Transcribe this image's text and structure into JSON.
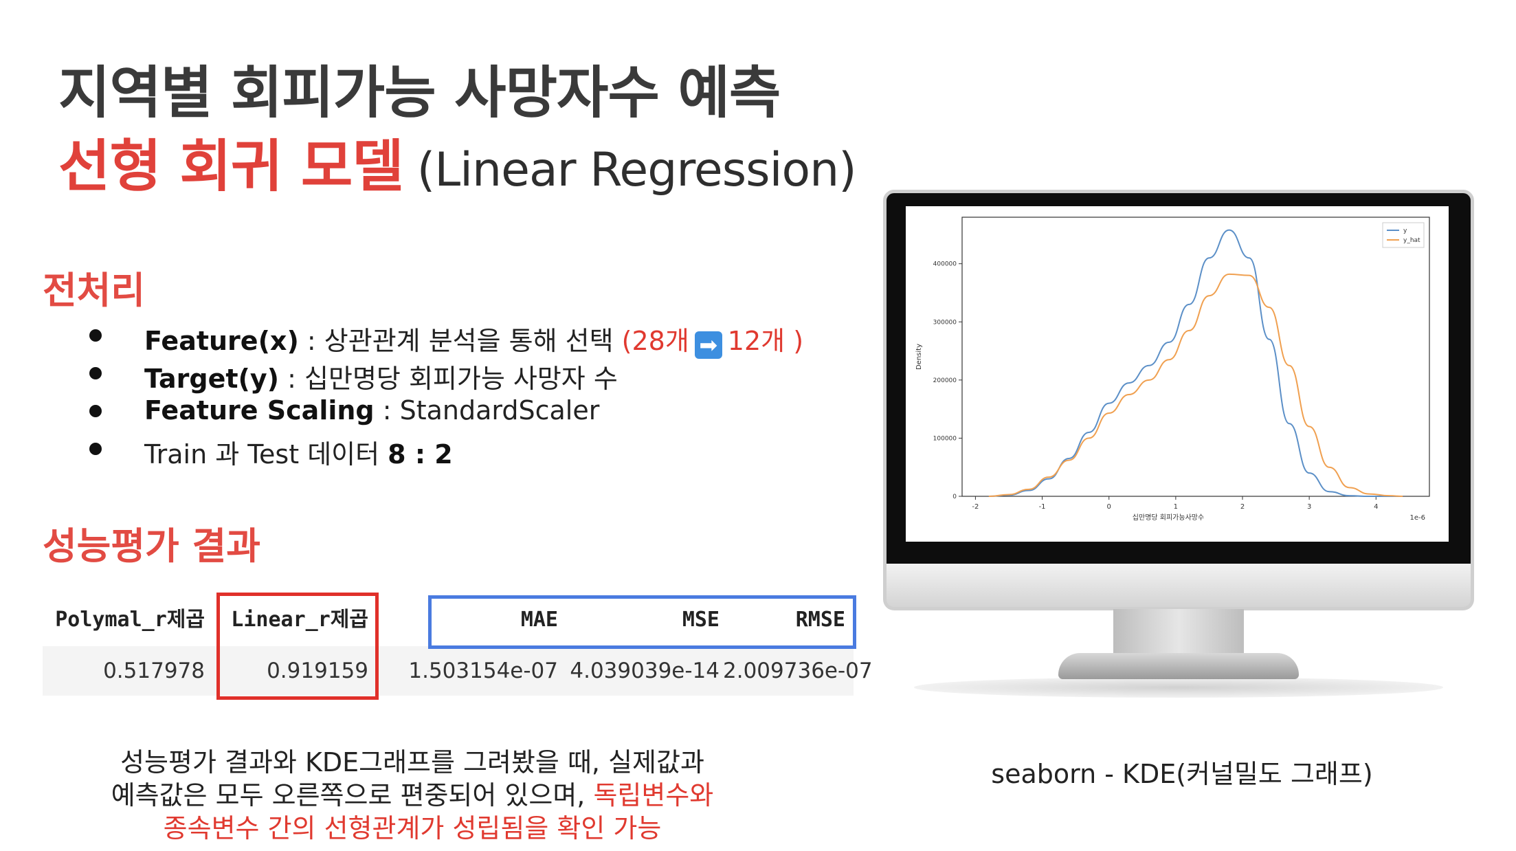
{
  "title": {
    "line1": "지역별 회피가능 사망자수 예측",
    "line2_kr": "선형 회귀 모델",
    "line2_en": "(Linear Regression)"
  },
  "preprocess": {
    "heading": "전처리",
    "items": [
      {
        "bold": "Feature(x)",
        "text": " : 상관관계 분석을 통해 선택 ",
        "red_a": "(28개",
        "arrow": "➡",
        "red_b": "12개 )"
      },
      {
        "bold": "Target(y)",
        "text": " : 십만명당 회피가능 사망자 수"
      },
      {
        "bold": "Feature Scaling",
        "text": " : StandardScaler"
      },
      {
        "text_a": "Train 과 Test 데이터 ",
        "bold": "8 : 2"
      }
    ]
  },
  "results": {
    "heading": "성능평가 결과",
    "headers": [
      "Polymal_r제곱",
      "Linear_r제곱",
      "MAE",
      "MSE",
      "RMSE"
    ],
    "row": [
      "0.517978",
      "0.919159",
      "1.503154e-07",
      "4.039039e-14",
      "2.009736e-07"
    ]
  },
  "conclusion": {
    "line1": "성능평가 결과와 KDE그래프를 그려봤을 때, 실제값과",
    "line2_a": "예측값은 모두 오른쪽으로 편중되어 있으며, ",
    "line2_b": "독립변수와",
    "line3": "종속변수 간의 선형관계가 성립됨을 확인 가능"
  },
  "caption": "seaborn - KDE(커널밀도 그래프)",
  "colors": {
    "title_red": "#e0413a",
    "y": "#5b8fc7",
    "y_hat": "#f0a050"
  },
  "chart_data": {
    "type": "line",
    "xlabel": "십만명당 회피가능사망수",
    "ylabel": "Density",
    "x_offset_label": "1e-6",
    "xlim": [
      -2.2,
      4.8
    ],
    "ylim": [
      0,
      480000
    ],
    "x_ticks": [
      "-2",
      "-1",
      "0",
      "1",
      "2",
      "3",
      "4"
    ],
    "y_ticks": [
      "0",
      "100000",
      "200000",
      "300000",
      "400000"
    ],
    "legend_position": "top-right",
    "x": [
      -1.8,
      -1.5,
      -1.2,
      -0.9,
      -0.6,
      -0.3,
      0.0,
      0.3,
      0.6,
      0.9,
      1.2,
      1.5,
      1.8,
      2.1,
      2.4,
      2.7,
      3.0,
      3.3,
      3.6,
      3.9,
      4.2,
      4.4
    ],
    "series": [
      {
        "name": "y",
        "values": [
          0,
          2000,
          10000,
          30000,
          65000,
          110000,
          160000,
          195000,
          225000,
          265000,
          330000,
          410000,
          458000,
          410000,
          270000,
          125000,
          40000,
          8000,
          1000,
          0,
          0,
          0
        ]
      },
      {
        "name": "y_hat",
        "values": [
          0,
          3000,
          12000,
          33000,
          62000,
          100000,
          143000,
          175000,
          200000,
          235000,
          285000,
          345000,
          382000,
          380000,
          325000,
          225000,
          120000,
          50000,
          15000,
          4000,
          1000,
          0
        ]
      }
    ]
  }
}
